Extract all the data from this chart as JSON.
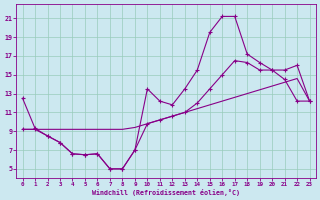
{
  "xlabel": "Windchill (Refroidissement éolien,°C)",
  "bg_color": "#cce8f0",
  "line_color": "#880088",
  "grid_color": "#99ccbb",
  "xlim": [
    -0.5,
    23.5
  ],
  "ylim": [
    4.0,
    22.5
  ],
  "yticks": [
    5,
    7,
    9,
    11,
    13,
    15,
    17,
    19,
    21
  ],
  "xticks": [
    0,
    1,
    2,
    3,
    4,
    5,
    6,
    7,
    8,
    9,
    10,
    11,
    12,
    13,
    14,
    15,
    16,
    17,
    18,
    19,
    20,
    21,
    22,
    23
  ],
  "curve1_x": [
    0,
    1,
    2,
    3,
    4,
    5,
    6,
    7,
    8,
    9,
    10,
    11,
    12,
    13,
    14,
    15,
    16,
    17,
    18,
    19,
    20,
    21,
    22,
    23
  ],
  "curve1_y": [
    12.5,
    9.3,
    8.5,
    7.8,
    6.6,
    6.5,
    6.6,
    5.0,
    5.0,
    7.0,
    13.5,
    12.2,
    11.8,
    13.5,
    15.5,
    19.5,
    21.2,
    21.2,
    17.2,
    16.3,
    15.5,
    14.5,
    12.2,
    12.2
  ],
  "curve2_x": [
    0,
    1,
    2,
    3,
    4,
    5,
    6,
    7,
    8,
    9,
    10,
    11,
    12,
    13,
    14,
    15,
    16,
    17,
    18,
    19,
    20,
    21,
    22,
    23
  ],
  "curve2_y": [
    9.2,
    9.2,
    9.2,
    9.2,
    9.2,
    9.2,
    9.2,
    9.2,
    9.2,
    9.4,
    9.8,
    10.2,
    10.6,
    11.0,
    11.4,
    11.8,
    12.2,
    12.6,
    13.0,
    13.4,
    13.8,
    14.2,
    14.6,
    12.2
  ],
  "curve3_x": [
    0,
    1,
    2,
    3,
    4,
    5,
    6,
    7,
    8,
    9,
    10,
    11,
    12,
    13,
    14,
    15,
    16,
    17,
    18,
    19,
    20,
    21,
    22,
    23
  ],
  "curve3_y": [
    9.2,
    9.2,
    8.5,
    7.8,
    6.6,
    6.5,
    6.6,
    5.0,
    5.0,
    7.0,
    9.8,
    10.2,
    10.6,
    11.0,
    12.0,
    13.5,
    15.0,
    16.5,
    16.3,
    15.5,
    15.5,
    15.5,
    16.0,
    12.2
  ]
}
